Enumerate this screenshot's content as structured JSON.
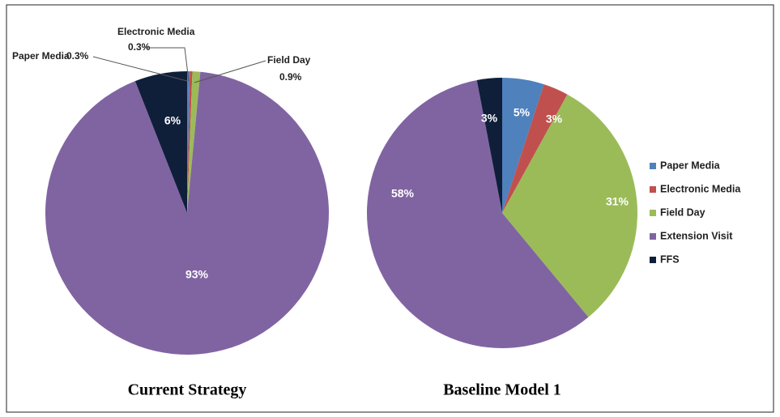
{
  "chart_data": [
    {
      "type": "pie",
      "title": "Current Strategy",
      "categories": [
        "Paper Media",
        "Electronic Media",
        "Field Day",
        "Extension Visit",
        "FFS"
      ],
      "values": [
        0.3,
        0.3,
        0.9,
        93,
        6
      ],
      "value_labels": [
        "0.3%",
        "0.3%",
        "0.9%",
        "93%",
        "6%"
      ],
      "colors": [
        "#4f81bd",
        "#c0504d",
        "#9bbb59",
        "#8064a2",
        "#0f1f3a"
      ]
    },
    {
      "type": "pie",
      "title": "Baseline Model 1",
      "categories": [
        "Paper Media",
        "Electronic Media",
        "Field Day",
        "Extension Visit",
        "FFS"
      ],
      "values": [
        5,
        3,
        31,
        58,
        3
      ],
      "value_labels": [
        "5%",
        "3%",
        "31%",
        "58%",
        "3%"
      ],
      "colors": [
        "#4f81bd",
        "#c0504d",
        "#9bbb59",
        "#8064a2",
        "#0f1f3a"
      ],
      "legend": "right"
    }
  ]
}
